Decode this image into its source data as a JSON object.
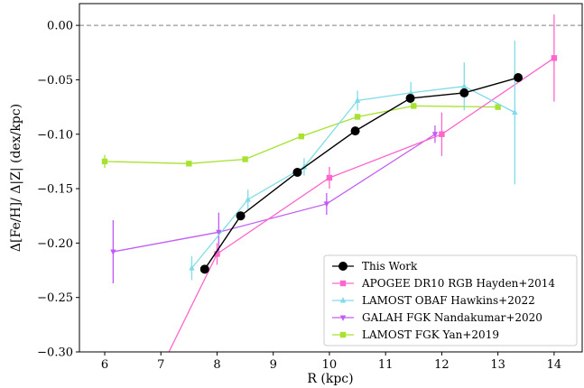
{
  "chart_data": {
    "type": "line",
    "xlabel": "R (kpc)",
    "ylabel": "Δ[Fe/H]/ Δ|Z| (dex/kpc)",
    "xlim": [
      5.55,
      14.5
    ],
    "ylim": [
      -0.3,
      0.02
    ],
    "x_ticks": [
      "6",
      "7",
      "8",
      "9",
      "10",
      "11",
      "12",
      "13",
      "14"
    ],
    "y_ticks": [
      "0.00",
      "−0.05",
      "−0.10",
      "−0.15",
      "−0.20",
      "−0.25",
      "−0.30"
    ],
    "reference_line": {
      "y": 0.0,
      "style": "dashed",
      "color": "#808080"
    },
    "legend_position": "lower-right",
    "series": [
      {
        "name": "This Work",
        "color": "#000000",
        "marker": "circle",
        "x": [
          7.78,
          8.42,
          9.43,
          10.46,
          11.44,
          12.4,
          13.36
        ],
        "y": [
          -0.224,
          -0.175,
          -0.135,
          -0.097,
          -0.067,
          -0.062,
          -0.048
        ],
        "yerr": [
          0,
          0,
          0,
          0,
          0,
          0,
          0
        ]
      },
      {
        "name": "APOGEE DR10 RGB Hayden+2014",
        "color": "#ff66cc",
        "marker": "square",
        "x": [
          7.0,
          8.0,
          10.0,
          12.0,
          14.0
        ],
        "y": [
          -0.315,
          -0.21,
          -0.14,
          -0.1,
          -0.03
        ],
        "yerr": [
          0,
          0.01,
          0.01,
          0.02,
          0.04
        ]
      },
      {
        "name": "LAMOST OBAF Hawkins+2022",
        "color": "#80dce8",
        "marker": "triangle",
        "x": [
          7.55,
          8.55,
          9.55,
          10.5,
          11.45,
          12.4,
          13.3
        ],
        "y": [
          -0.223,
          -0.16,
          -0.13,
          -0.069,
          -0.062,
          -0.056,
          -0.08
        ],
        "yerr": [
          0.011,
          0.009,
          0.008,
          0.009,
          0.01,
          0.022,
          0.066
        ]
      },
      {
        "name": "GALAH FGK Nandakumar+2020",
        "color": "#c05cf5",
        "marker": "triangle-down",
        "x": [
          6.15,
          8.03,
          9.95,
          11.88
        ],
        "y": [
          -0.208,
          -0.19,
          -0.164,
          -0.1
        ],
        "yerr": [
          0.029,
          0.018,
          0.01,
          0.008
        ]
      },
      {
        "name": "LAMOST FGK Yan+2019",
        "color": "#a6e22e",
        "marker": "square",
        "x": [
          6.0,
          7.5,
          8.5,
          9.5,
          10.5,
          11.5,
          13.0
        ],
        "y": [
          -0.125,
          -0.127,
          -0.123,
          -0.102,
          -0.084,
          -0.074,
          -0.075
        ],
        "yerr": [
          0.006,
          0.002,
          0.002,
          0.002,
          0.002,
          0.002,
          0.002
        ]
      }
    ]
  }
}
